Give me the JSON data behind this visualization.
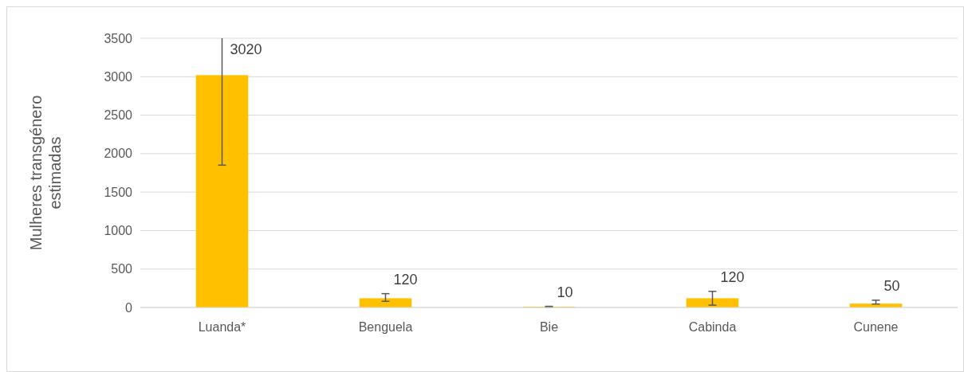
{
  "chart_data": {
    "type": "bar",
    "ylabel": "Mulheres transgénero estimadas",
    "categories": [
      "Luanda*",
      "Benguela",
      "Bie",
      "Cabinda",
      "Cunene"
    ],
    "values": [
      3020,
      120,
      10,
      120,
      50
    ],
    "errors": [
      [
        1850,
        3500
      ],
      [
        80,
        180
      ],
      5,
      [
        30,
        210
      ],
      [
        45,
        95
      ]
    ],
    "color": "#ffc000",
    "ylim": [
      0,
      3500
    ],
    "yticks": [
      0,
      500,
      1000,
      1500,
      2000,
      2500,
      3000,
      3500
    ],
    "grid": "y",
    "data_labels": true
  }
}
